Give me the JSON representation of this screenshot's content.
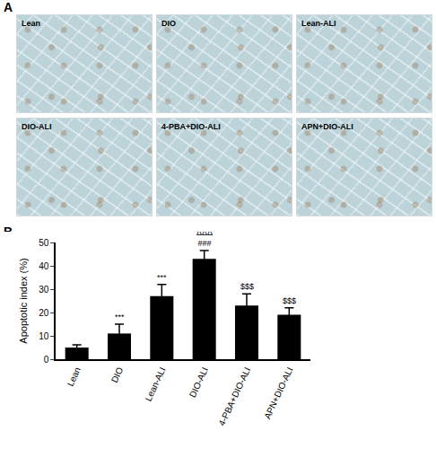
{
  "panel_labels": [
    "A",
    "B"
  ],
  "images": [
    "Lean",
    "DIO",
    "Lean-ALI",
    "DIO-ALI",
    "4-PBA+DIO-ALI",
    "APN+DIO-ALI"
  ],
  "chart_data": {
    "type": "bar",
    "y_label": "Apoptotic index (%)",
    "categories": [
      "Lean",
      "DIO",
      "Lean-ALI",
      "DIO-ALI",
      "4-PBA+DIO-ALI",
      "APN+DIO-ALI"
    ],
    "values": [
      5,
      11,
      27,
      43,
      23,
      19
    ],
    "error": [
      1.2,
      4,
      5,
      3.5,
      5,
      3
    ],
    "annotations": [
      null,
      "***",
      "***",
      "ΔΔΔ\n###",
      "$$$",
      "$$$"
    ],
    "color": "#000000",
    "ylim": [
      0,
      50
    ],
    "yticks": [
      0,
      10,
      20,
      30,
      40,
      50
    ],
    "grid": false
  }
}
